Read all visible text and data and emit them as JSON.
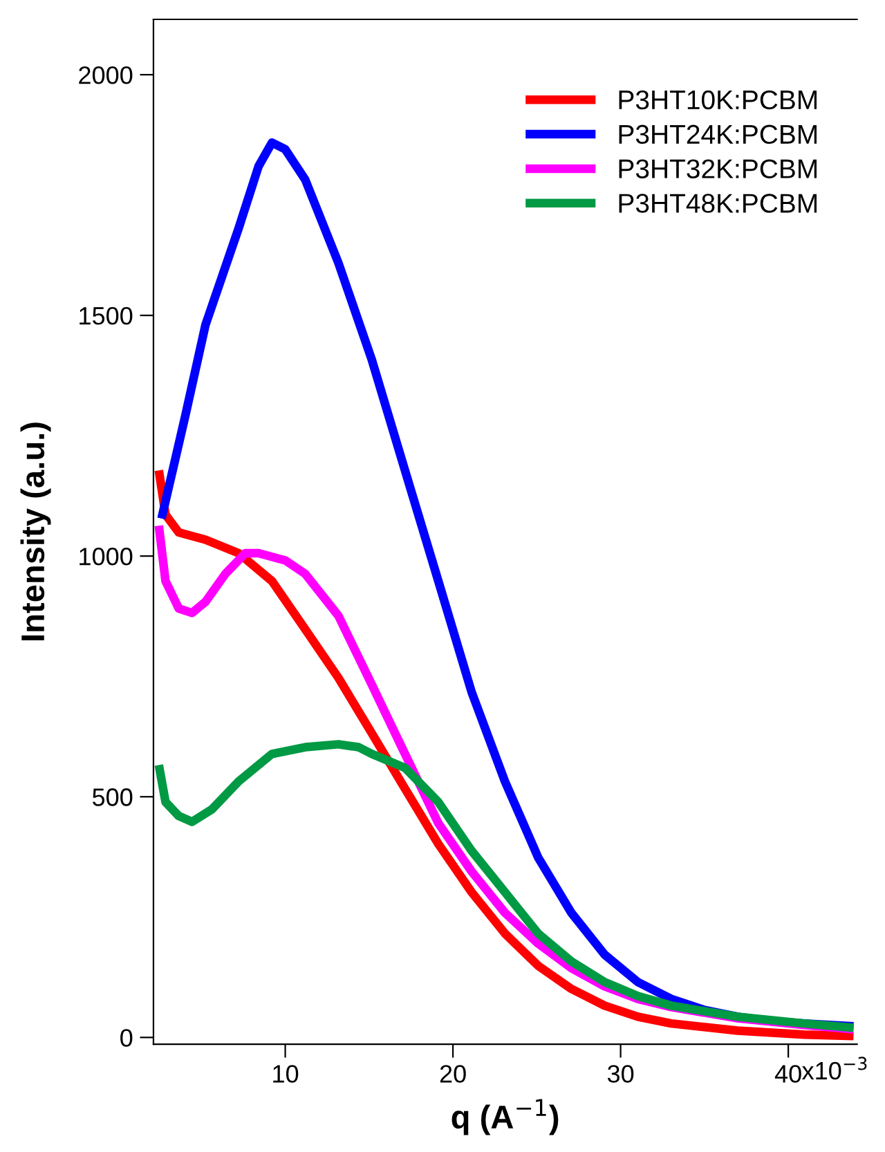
{
  "chart_data": {
    "type": "line",
    "xlabel": "q (A$^{−1}$)",
    "ylabel": "Intensity (a.u.)",
    "xlim": [
      2.14,
      44.1
    ],
    "ylim": [
      -14,
      2115
    ],
    "xticks": [
      10,
      20,
      30,
      40
    ],
    "annotations": [
      "x10$^{−3}$"
    ],
    "yticks": [
      0,
      500,
      1000,
      1500,
      2000
    ],
    "grid": false,
    "legend": "top right",
    "marker": "none",
    "line_style": "solid",
    "series": [
      {
        "name": "P3HT10K:PCBM",
        "color": "#ff0000",
        "x": [
          2.46,
          2.86,
          3.65,
          5.24,
          7.22,
          9.21,
          11.19,
          13.17,
          15.16,
          17.14,
          19.13,
          21.11,
          23.1,
          25.08,
          27.06,
          29.05,
          31.03,
          33.02,
          36.98,
          40.95,
          43.89
        ],
        "values": [
          1178,
          1086,
          1049,
          1034,
          1006,
          948,
          848,
          747,
          632,
          517,
          402,
          302,
          216,
          149,
          101,
          66,
          43,
          29,
          14,
          6,
          3
        ]
      },
      {
        "name": "P3HT24K:PCBM",
        "color": "#0000ff",
        "x": [
          2.62,
          4.05,
          5.24,
          7.22,
          8.41,
          9.21,
          10,
          11.19,
          13.17,
          15.16,
          17.14,
          19.13,
          21.11,
          23.1,
          25.08,
          27.06,
          29.05,
          31.03,
          33.02,
          35,
          36.98,
          38.97,
          40.95,
          43.89
        ],
        "values": [
          1078,
          1293,
          1480,
          1681,
          1810,
          1859,
          1845,
          1782,
          1609,
          1408,
          1178,
          948,
          718,
          532,
          374,
          259,
          172,
          115,
          80,
          57,
          43,
          34,
          29,
          23
        ]
      },
      {
        "name": "P3HT32K:PCBM",
        "color": "#ff00ff",
        "x": [
          2.46,
          2.86,
          3.65,
          4.44,
          5.24,
          6.43,
          7.62,
          8.41,
          10,
          11.19,
          13.17,
          15.16,
          17.14,
          19.13,
          21.11,
          23.1,
          25.08,
          27.06,
          29.05,
          31.03,
          33.02,
          36.98,
          40.95,
          43.89
        ],
        "values": [
          1063,
          948,
          891,
          882,
          905,
          963,
          1006,
          1006,
          991,
          963,
          876,
          733,
          589,
          445,
          345,
          259,
          195,
          144,
          106,
          80,
          63,
          40,
          26,
          17
        ]
      },
      {
        "name": "P3HT48K:PCBM",
        "color": "#009944",
        "x": [
          2.46,
          2.86,
          3.65,
          4.44,
          5.63,
          7.22,
          9.21,
          11.19,
          13.17,
          14.37,
          15.16,
          17.14,
          19.13,
          21.11,
          23.1,
          25.08,
          27.06,
          29.05,
          31.03,
          33.02,
          36.98,
          40.95,
          43.89
        ],
        "values": [
          566,
          489,
          460,
          448,
          474,
          532,
          589,
          603,
          609,
          603,
          589,
          560,
          489,
          388,
          302,
          216,
          158,
          115,
          86,
          66,
          43,
          29,
          20
        ]
      }
    ]
  }
}
